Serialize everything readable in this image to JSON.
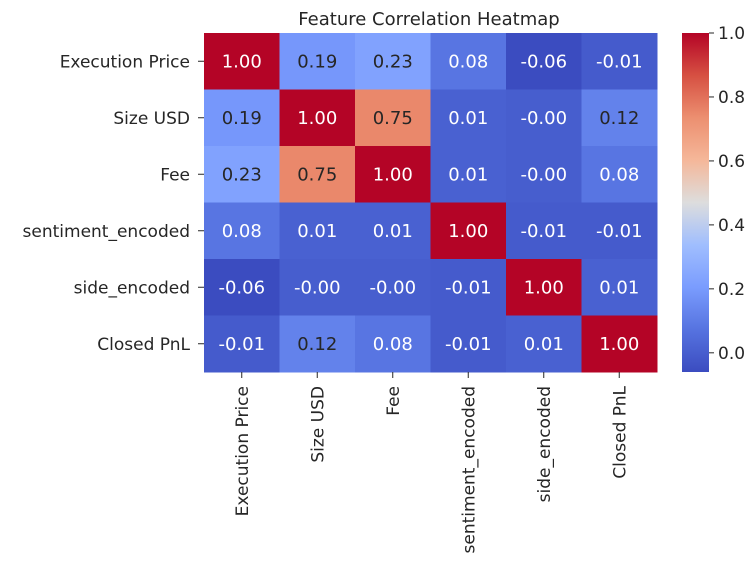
{
  "chart_data": {
    "type": "heatmap",
    "title": "Feature Correlation Heatmap",
    "xlabel": "",
    "ylabel": "",
    "rows": [
      "Execution Price",
      "Size USD",
      "Fee",
      "sentiment_encoded",
      "side_encoded",
      "Closed PnL"
    ],
    "columns": [
      "Execution Price",
      "Size USD",
      "Fee",
      "sentiment_encoded",
      "side_encoded",
      "Closed PnL"
    ],
    "values": [
      [
        1.0,
        0.19,
        0.23,
        0.08,
        -0.06,
        -0.01
      ],
      [
        0.19,
        1.0,
        0.75,
        0.01,
        -0.0,
        0.12
      ],
      [
        0.23,
        0.75,
        1.0,
        0.01,
        -0.0,
        0.08
      ],
      [
        0.08,
        0.01,
        0.01,
        1.0,
        -0.01,
        -0.01
      ],
      [
        -0.06,
        -0.0,
        -0.0,
        -0.01,
        1.0,
        0.01
      ],
      [
        -0.01,
        0.12,
        0.08,
        -0.01,
        0.01,
        1.0
      ]
    ],
    "cell_labels": [
      [
        "1.00",
        "0.19",
        "0.23",
        "0.08",
        "-0.06",
        "-0.01"
      ],
      [
        "0.19",
        "1.00",
        "0.75",
        "0.01",
        "-0.00",
        "0.12"
      ],
      [
        "0.23",
        "0.75",
        "1.00",
        "0.01",
        "-0.00",
        "0.08"
      ],
      [
        "0.08",
        "0.01",
        "0.01",
        "1.00",
        "-0.01",
        "-0.01"
      ],
      [
        "-0.06",
        "-0.00",
        "-0.00",
        "-0.01",
        "1.00",
        "0.01"
      ],
      [
        "-0.01",
        "0.12",
        "0.08",
        "-0.01",
        "0.01",
        "1.00"
      ]
    ],
    "colormap": "coolwarm",
    "color_range": [
      -0.06,
      1.0
    ],
    "colorbar": {
      "placement": "right",
      "ticks": [
        0.0,
        0.2,
        0.4,
        0.6,
        0.8,
        1.0
      ],
      "tick_labels": [
        "0.0",
        "0.2",
        "0.4",
        "0.6",
        "0.8",
        "1.0"
      ]
    },
    "grid": false
  }
}
